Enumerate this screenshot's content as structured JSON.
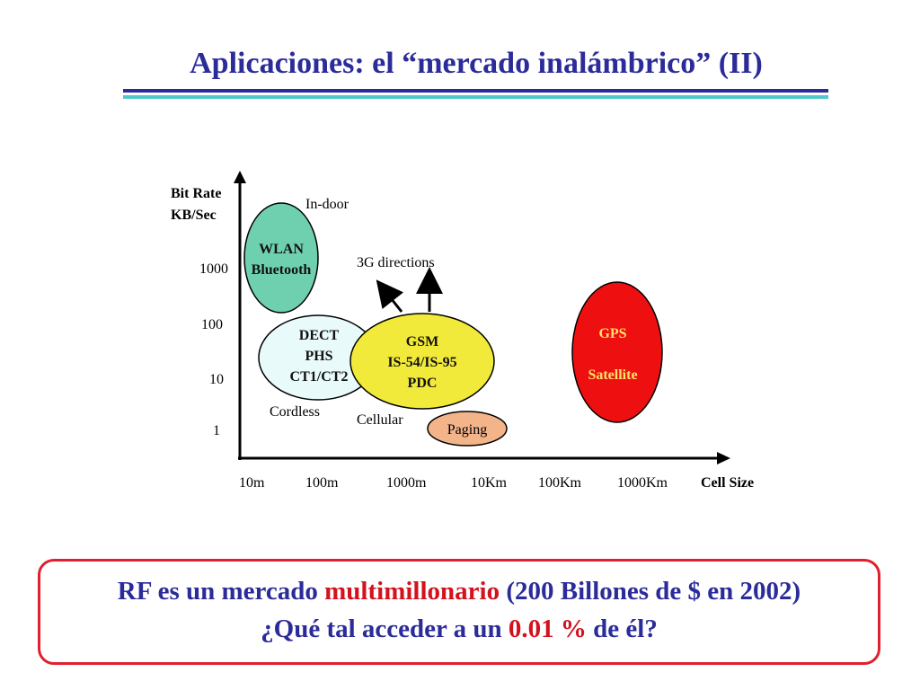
{
  "slide": {
    "title": "Aplicaciones: el “mercado inalámbrico” (II)"
  },
  "diagram": {
    "y_axis_title_line1": "Bit Rate",
    "y_axis_title_line2": "KB/Sec",
    "y_ticks": [
      "1000",
      "100",
      "10",
      "1"
    ],
    "x_ticks": [
      "10m",
      "100m",
      "1000m",
      "10Km",
      "100Km",
      "1000Km"
    ],
    "x_axis_title": "Cell Size",
    "labels": {
      "indoor": "In-door",
      "directions": "3G directions",
      "cordless": "Cordless",
      "cellular": "Cellular"
    },
    "regions": {
      "wlan": {
        "line1": "WLAN",
        "line2": "Bluetooth",
        "color": "#6fd0b0"
      },
      "dect": {
        "line1": "DECT",
        "line2": "PHS",
        "line3": "CT1/CT2",
        "color": "#e8fafa"
      },
      "gsm": {
        "line1": "GSM",
        "line2": "IS-54/IS-95",
        "line3": "PDC",
        "color": "#f2ea3a"
      },
      "paging": {
        "label": "Paging",
        "color": "#f4b48a"
      },
      "gps": {
        "line1": "GPS",
        "line2": "Satellite",
        "color": "#ee1010"
      }
    }
  },
  "callout": {
    "line1_a": "RF es un mercado ",
    "line1_b": "multimillonario",
    "line1_c": " (200 Billones de $ en 2002)",
    "line2_a": "¿Qué tal acceder a un ",
    "line2_b": "0.01",
    "line2_c": " % ",
    "line2_d": "de él?"
  }
}
